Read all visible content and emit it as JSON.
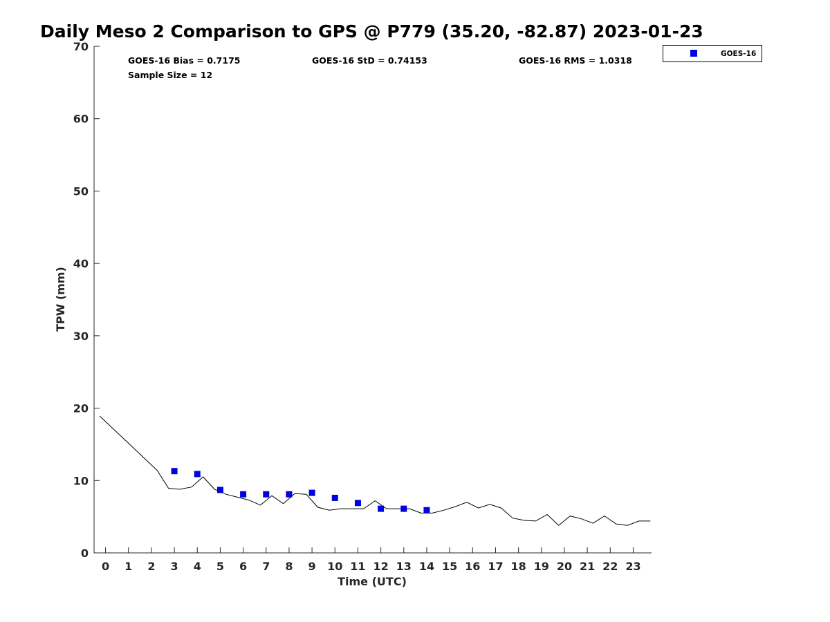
{
  "chart_data": {
    "type": "scatter",
    "title": "Daily Meso 2 Comparison to GPS @ P779 (35.20, -82.87) 2023-01-23",
    "xlabel": "Time (UTC)",
    "ylabel": "TPW (mm)",
    "xlim": [
      -0.5,
      23.8
    ],
    "ylim": [
      0,
      70
    ],
    "xticks": [
      "0",
      "1",
      "2",
      "3",
      "4",
      "5",
      "6",
      "7",
      "8",
      "9",
      "10",
      "11",
      "12",
      "13",
      "14",
      "15",
      "16",
      "17",
      "18",
      "19",
      "20",
      "21",
      "22",
      "23"
    ],
    "yticks": [
      "0",
      "10",
      "20",
      "30",
      "40",
      "50",
      "60",
      "70"
    ],
    "grid": false,
    "legend_position": "outside-top-right",
    "stats": {
      "bias": "GOES-16 Bias = 0.7175",
      "std": "GOES-16 StD = 0.74153",
      "rms": "GOES-16 RMS = 1.0318",
      "sample": "Sample Size = 12"
    },
    "series": [
      {
        "name": "GOES-16",
        "kind": "scatter",
        "marker": "square",
        "color": "#0000e0",
        "x": [
          3,
          4,
          5,
          6,
          7,
          8,
          9,
          10,
          11,
          12,
          13,
          14
        ],
        "y": [
          11.3,
          10.9,
          8.7,
          8.1,
          8.1,
          8.1,
          8.3,
          7.6,
          6.9,
          6.1,
          6.1,
          5.9
        ]
      },
      {
        "kind": "line",
        "color": "#000000",
        "x": [
          -0.25,
          2.25,
          2.75,
          3.25,
          3.75,
          4.25,
          4.75,
          5.25,
          5.75,
          6.25,
          6.75,
          7.25,
          7.75,
          8.25,
          8.75,
          9.25,
          9.75,
          10.25,
          10.75,
          11.25,
          11.75,
          12.25,
          12.75,
          13.25,
          13.75,
          14.25,
          14.75,
          15.25,
          15.75,
          16.25,
          16.75,
          17.25,
          17.75,
          18.25,
          18.75,
          19.25,
          19.75,
          20.25,
          20.75,
          21.25,
          21.75,
          22.25,
          22.75,
          23.25,
          23.75
        ],
        "y": [
          18.9,
          11.4,
          8.9,
          8.8,
          9.1,
          10.5,
          8.8,
          8.1,
          7.7,
          7.3,
          6.6,
          7.9,
          6.8,
          8.2,
          8.1,
          6.3,
          5.9,
          6.1,
          6.1,
          6.1,
          7.2,
          6.1,
          6.1,
          6.1,
          5.5,
          5.5,
          5.9,
          6.4,
          7.0,
          6.2,
          6.7,
          6.2,
          4.8,
          4.5,
          4.4,
          5.3,
          3.8,
          5.1,
          4.7,
          4.1,
          5.1,
          4.0,
          3.8,
          4.4,
          4.4
        ]
      }
    ]
  }
}
